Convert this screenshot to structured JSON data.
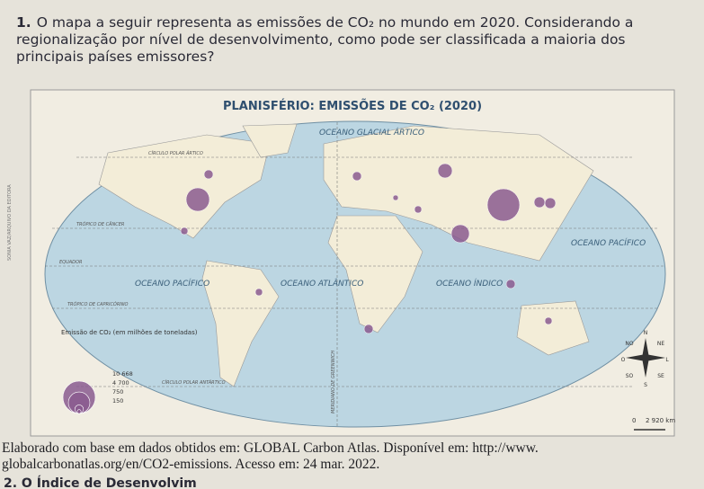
{
  "question": {
    "number": "1.",
    "text": "O mapa a seguir representa as emissões de CO₂ no mundo em 2020. Considerando a regionalização por nível de desenvolvimento, como pode ser classificada a maioria dos principais países emissores?"
  },
  "map": {
    "title": "PLANISFÉRIO: EMISSÕES DE CO₂ (2020)",
    "credit": "SONIA VAZ/ARQUIVO DA EDITORA",
    "lines": {
      "arctic_circle": "CÍRCULO POLAR ÁRTICO",
      "cancer": "TRÓPICO DE CÂNCER",
      "equator": "EQUADOR",
      "capricorn": "TRÓPICO DE CAPRICÓRNIO",
      "antarctic_circle": "CÍRCULO POLAR ANTÁRTICO",
      "greenwich": "MERIDIANO DE GREENWICH"
    },
    "oceans": {
      "arctic": "OCEANO GLACIAL ÁRTICO",
      "pacific_east": "OCEANO PACÍFICO",
      "pacific_west": "OCEANO PACÍFICO",
      "atlantic": "OCEANO ATLÂNTICO",
      "indian": "OCEANO ÍNDICO"
    },
    "legend": {
      "title": "Emissão de CO₂ (em milhões de toneladas)",
      "items": [
        {
          "value": 10668,
          "label": "10 668"
        },
        {
          "value": 4700,
          "label": "4 700"
        },
        {
          "value": 750,
          "label": "750"
        },
        {
          "value": 150,
          "label": "150"
        }
      ]
    },
    "compass": {
      "n": "N",
      "ne": "NE",
      "e": "L",
      "se": "SE",
      "s": "S",
      "sw": "SO",
      "w": "O",
      "nw": "NO"
    },
    "scale": {
      "start": "0",
      "end": "2 920 km"
    }
  },
  "source": "Elaborado com base em dados obtidos em: GLOBAL Carbon Atlas. Disponível em: http://www. globalcarbonatlas.org/en/CO2-emissions. Acesso em: 24 mar. 2022.",
  "next_question": "2. O Índice de Desenvolvim"
}
